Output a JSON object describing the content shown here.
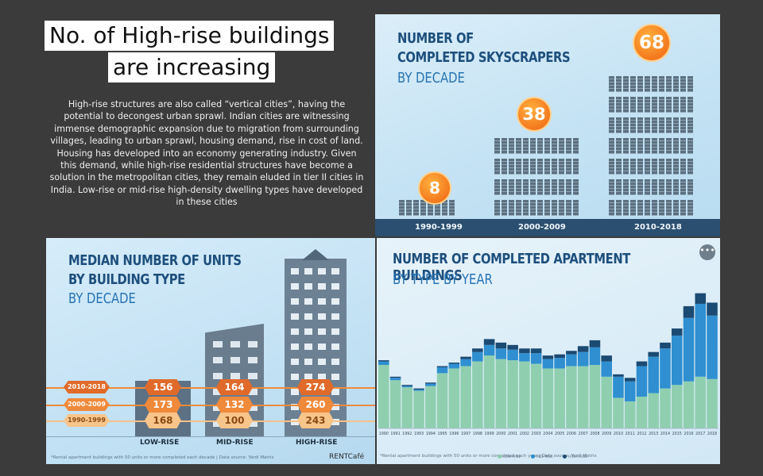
{
  "slide": {
    "title_line1": "No. of High-rise buildings",
    "title_line2": "are increasing",
    "body": "High-rise structures are also called “vertical cities”, having the potential to decongest urban sprawl. Indian cities are witnessing immense demographic expansion due to migration from surrounding villages, leading to urban sprawl, housing demand, rise in cost of land. Housing has developed into an economy generating industry. Given this demand, while high-rise residential structures have become a solution in the metropolitan cities, they remain eluded in tier II cities in India. Low-rise or mid-rise high-density dwelling types have developed in these cities"
  },
  "skyscrapers": {
    "title_line1": "NUMBER OF",
    "title_line2": "COMPLETED SKYSCRAPERS",
    "subtitle": "BY DECADE",
    "decades": [
      {
        "label": "1990-1999",
        "value": "8"
      },
      {
        "label": "2000-2009",
        "value": "38"
      },
      {
        "label": "2010-2018",
        "value": "68"
      }
    ]
  },
  "units": {
    "title_line1": "MEDIAN NUMBER OF UNITS",
    "title_line2": "BY BUILDING TYPE",
    "subtitle": "BY DECADE",
    "decades": [
      "2010-2018",
      "2000-2009",
      "1990-1999"
    ],
    "types": [
      {
        "label": "LOW-RISE",
        "values": [
          "156",
          "173",
          "168"
        ]
      },
      {
        "label": "MID-RISE",
        "values": [
          "164",
          "132",
          "100"
        ]
      },
      {
        "label": "HIGH-RISE",
        "values": [
          "274",
          "260",
          "243"
        ]
      }
    ],
    "footnote": "*Rental apartment buildings with 50 units or more completed each decade | Data source: Yardi Matrix",
    "brand": "RENTCafé"
  },
  "buildings": {
    "title_line1": "NUMBER OF COMPLETED APARTMENT BUILDINGS",
    "subtitle": "BY TYPE BY YEAR",
    "more_icon": "more-options-icon",
    "footnote": "*Rental apartment buildings with 50 units or more completed each year | Data source: Yardi Matrix",
    "legend": [
      {
        "label": "LOW-RISE",
        "color": "#8fcfb0"
      },
      {
        "label": "MID-RISE",
        "color": "#2f8fd0"
      },
      {
        "label": "HIGH-RISE",
        "color": "#1b4a72"
      }
    ]
  },
  "chart_data": {
    "type": "bar",
    "stacked": true,
    "categories": [
      "1990",
      "1991",
      "1992",
      "1993",
      "1994",
      "1995",
      "1996",
      "1997",
      "1998",
      "1999",
      "2000",
      "2001",
      "2002",
      "2003",
      "2004",
      "2005",
      "2006",
      "2007",
      "2008",
      "2009",
      "2010",
      "2011",
      "2012",
      "2013",
      "2014",
      "2015",
      "2016",
      "2017",
      "2018"
    ],
    "series": [
      {
        "name": "LOW-RISE",
        "color": "#8fcfb0",
        "values": [
          54,
          41,
          35,
          32,
          36,
          47,
          51,
          53,
          57,
          62,
          59,
          58,
          57,
          55,
          51,
          51,
          53,
          53,
          54,
          44,
          26,
          23,
          27,
          30,
          34,
          37,
          40,
          44,
          42
        ]
      },
      {
        "name": "MID-RISE",
        "color": "#2f8fd0",
        "values": [
          3,
          2,
          1,
          1,
          2,
          5,
          4,
          6,
          8,
          9,
          9,
          9,
          7,
          9,
          8,
          9,
          10,
          12,
          15,
          13,
          18,
          17,
          26,
          31,
          34,
          42,
          54,
          62,
          54
        ]
      },
      {
        "name": "HIGH-RISE",
        "color": "#1b4a72",
        "values": [
          1,
          1,
          1,
          1,
          1,
          1,
          1,
          2,
          3,
          5,
          5,
          4,
          4,
          4,
          3,
          3,
          3,
          5,
          6,
          5,
          2,
          3,
          4,
          4,
          5,
          6,
          10,
          9,
          11
        ]
      }
    ]
  }
}
